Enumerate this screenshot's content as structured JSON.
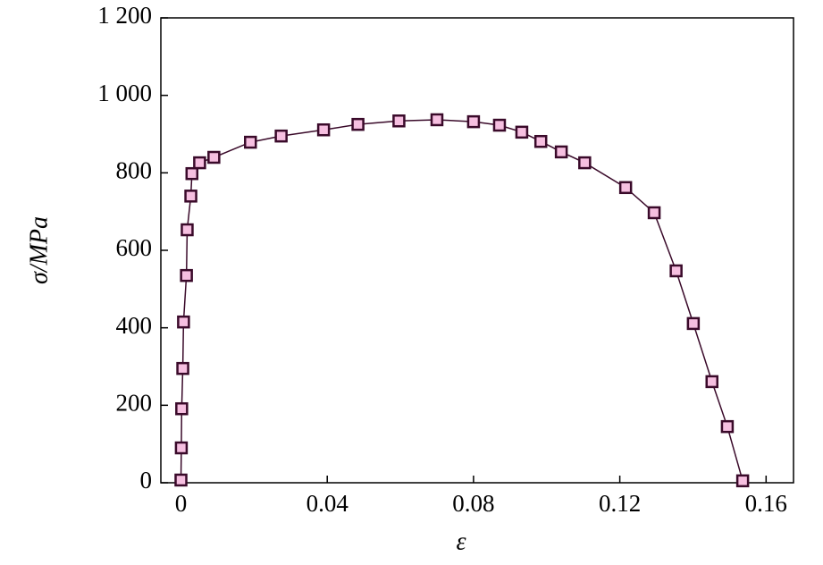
{
  "chart_data": {
    "type": "line",
    "xlabel": "ε",
    "ylabel": "σ/MPa",
    "x": [
      0,
      0.0001,
      0.0002,
      0.0005,
      0.0007,
      0.0015,
      0.0017,
      0.0027,
      0.003,
      0.0051,
      0.009,
      0.019,
      0.0274,
      0.039,
      0.0484,
      0.0596,
      0.07,
      0.08,
      0.0871,
      0.0932,
      0.0984,
      0.104,
      0.1104,
      0.1216,
      0.1294,
      0.1354,
      0.1401,
      0.1452,
      0.1494,
      0.1536
    ],
    "series": [
      {
        "color": "#3a0a2a",
        "marker_color": "#f6bfe0",
        "values": [
          7,
          90,
          191,
          295,
          415,
          535,
          653,
          740,
          798,
          826,
          840,
          879,
          895,
          911,
          925,
          934,
          937,
          932,
          923,
          905,
          881,
          854,
          826,
          762,
          697,
          547,
          411,
          261,
          145,
          5
        ]
      }
    ],
    "xlim": [
      -0.0055,
      0.1675
    ],
    "xticks": [
      0,
      0.04,
      0.08,
      0.12,
      0.16
    ],
    "ylim": [
      0,
      1200
    ],
    "yticks": [
      0,
      200,
      400,
      600,
      800,
      {
        "value": 1000,
        "label": "1 000"
      },
      {
        "value": 1200,
        "label": "1 200"
      }
    ]
  }
}
